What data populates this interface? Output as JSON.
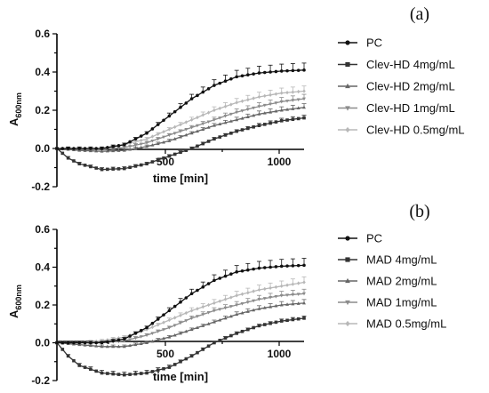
{
  "chart_data": [
    {
      "type": "line",
      "panel_label": "(a)",
      "ylabel_main": "A",
      "ylabel_sub": "600nm",
      "xlabel": "time [min]",
      "x_ticks": [
        "500",
        "1000"
      ],
      "y_ticks": [
        "0.6",
        "0.4",
        "0.2",
        "0.0",
        "-0.2"
      ],
      "xlim": [
        0,
        1100
      ],
      "ylim": [
        -0.2,
        0.6
      ],
      "legend_position": "right",
      "series": [
        {
          "name": "PC",
          "marker": "circle",
          "color": "#111111",
          "x": [
            0,
            200,
            300,
            400,
            500,
            600,
            700,
            800,
            900,
            1000,
            1100
          ],
          "y": [
            0.0,
            0.0,
            0.02,
            0.08,
            0.17,
            0.26,
            0.33,
            0.375,
            0.395,
            0.405,
            0.41
          ]
        },
        {
          "name": "Clev-HD 4mg/mL",
          "marker": "square",
          "color": "#333333",
          "x": [
            0,
            50,
            100,
            200,
            300,
            400,
            500,
            600,
            700,
            800,
            900,
            1000,
            1100
          ],
          "y": [
            0.0,
            -0.05,
            -0.08,
            -0.11,
            -0.105,
            -0.08,
            -0.04,
            0.0,
            0.05,
            0.09,
            0.12,
            0.145,
            0.16
          ]
        },
        {
          "name": "Clev-HD 2mg/mL",
          "marker": "triangle",
          "color": "#666666",
          "x": [
            0,
            100,
            200,
            300,
            400,
            500,
            600,
            700,
            800,
            900,
            1000,
            1100
          ],
          "y": [
            0.0,
            -0.01,
            -0.015,
            -0.01,
            0.01,
            0.04,
            0.08,
            0.12,
            0.15,
            0.18,
            0.2,
            0.215
          ]
        },
        {
          "name": "Clev-HD 1mg/mL",
          "marker": "triangle-down",
          "color": "#8c8c8c",
          "x": [
            0,
            100,
            200,
            300,
            400,
            500,
            600,
            700,
            800,
            900,
            1000,
            1100
          ],
          "y": [
            0.0,
            -0.005,
            -0.005,
            0.005,
            0.03,
            0.07,
            0.11,
            0.15,
            0.19,
            0.22,
            0.245,
            0.26
          ]
        },
        {
          "name": "Clev-HD 0.5mg/mL",
          "marker": "diamond",
          "color": "#b8b8b8",
          "x": [
            0,
            100,
            200,
            300,
            400,
            500,
            600,
            700,
            800,
            900,
            1000,
            1100
          ],
          "y": [
            0.0,
            0.0,
            0.0,
            0.02,
            0.05,
            0.1,
            0.15,
            0.2,
            0.24,
            0.27,
            0.29,
            0.3
          ]
        }
      ]
    },
    {
      "type": "line",
      "panel_label": "(b)",
      "ylabel_main": "A",
      "ylabel_sub": "600nm",
      "xlabel": "time [min]",
      "x_ticks": [
        "500",
        "1000"
      ],
      "y_ticks": [
        "0.6",
        "0.4",
        "0.2",
        "0.0",
        "-0.2"
      ],
      "xlim": [
        0,
        1100
      ],
      "ylim": [
        -0.2,
        0.6
      ],
      "legend_position": "right",
      "series": [
        {
          "name": "PC",
          "marker": "circle",
          "color": "#111111",
          "x": [
            0,
            200,
            300,
            400,
            500,
            600,
            700,
            800,
            900,
            1000,
            1100
          ],
          "y": [
            0.0,
            0.0,
            0.02,
            0.08,
            0.17,
            0.26,
            0.33,
            0.375,
            0.395,
            0.405,
            0.41
          ]
        },
        {
          "name": "MAD 4mg/mL",
          "marker": "square",
          "color": "#333333",
          "x": [
            0,
            50,
            100,
            200,
            300,
            400,
            500,
            600,
            700,
            800,
            900,
            1000,
            1100
          ],
          "y": [
            0.0,
            -0.07,
            -0.12,
            -0.16,
            -0.17,
            -0.16,
            -0.13,
            -0.07,
            0.0,
            0.05,
            0.09,
            0.115,
            0.13
          ]
        },
        {
          "name": "MAD 2mg/mL",
          "marker": "triangle",
          "color": "#666666",
          "x": [
            0,
            100,
            200,
            300,
            400,
            500,
            600,
            700,
            800,
            900,
            1000,
            1100
          ],
          "y": [
            0.0,
            -0.01,
            -0.02,
            -0.02,
            0.0,
            0.03,
            0.07,
            0.11,
            0.15,
            0.18,
            0.2,
            0.21
          ]
        },
        {
          "name": "MAD 1mg/mL",
          "marker": "triangle-down",
          "color": "#8c8c8c",
          "x": [
            0,
            100,
            200,
            300,
            400,
            500,
            600,
            700,
            800,
            900,
            1000,
            1100
          ],
          "y": [
            0.0,
            0.0,
            0.0,
            0.01,
            0.04,
            0.08,
            0.13,
            0.17,
            0.2,
            0.23,
            0.25,
            0.26
          ]
        },
        {
          "name": "MAD 0.5mg/mL",
          "marker": "diamond",
          "color": "#b8b8b8",
          "x": [
            0,
            100,
            200,
            300,
            400,
            500,
            600,
            700,
            800,
            900,
            1000,
            1100
          ],
          "y": [
            0.0,
            0.0,
            0.01,
            0.03,
            0.07,
            0.12,
            0.17,
            0.21,
            0.25,
            0.28,
            0.3,
            0.32
          ]
        }
      ]
    }
  ]
}
